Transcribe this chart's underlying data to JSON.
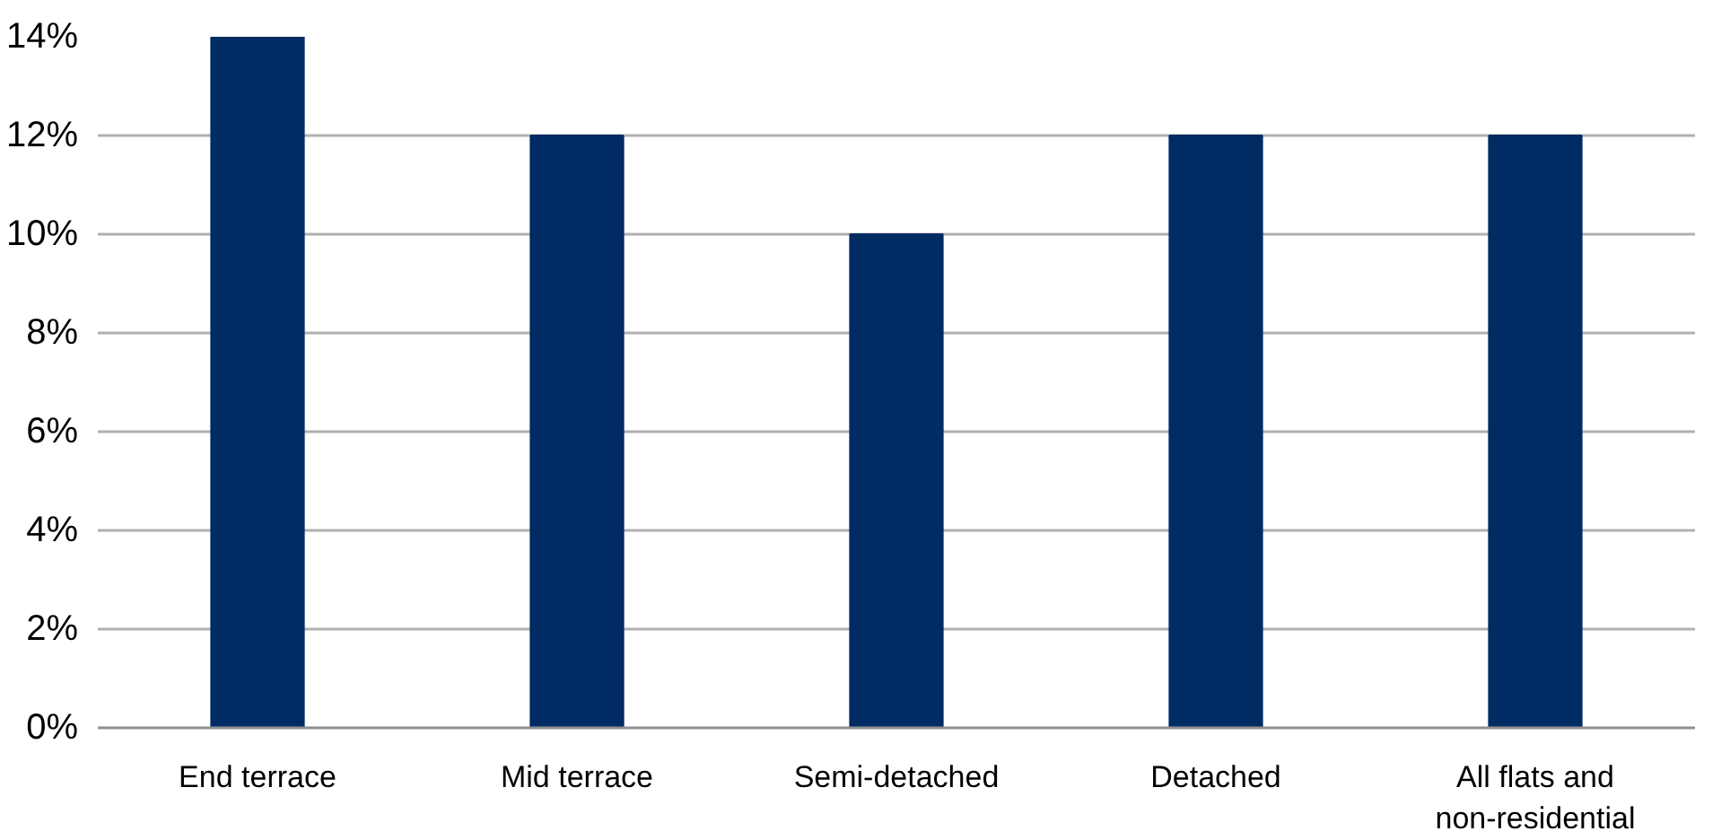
{
  "chart_data": {
    "type": "bar",
    "categories": [
      "End terrace",
      "Mid terrace",
      "Semi-detached",
      "Detached",
      "All flats and\nnon-residential"
    ],
    "values": [
      14,
      12,
      10,
      12,
      12
    ],
    "color": "#002b63",
    "ylim": [
      0,
      14
    ],
    "yticks": [
      {
        "value": 0,
        "label": "0%"
      },
      {
        "value": 2,
        "label": "2%"
      },
      {
        "value": 4,
        "label": "4%"
      },
      {
        "value": 6,
        "label": "6%"
      },
      {
        "value": 8,
        "label": "8%"
      },
      {
        "value": 10,
        "label": "10%"
      },
      {
        "value": 12,
        "label": "12%"
      },
      {
        "value": 14,
        "label": "14%"
      }
    ],
    "grid": "y"
  }
}
